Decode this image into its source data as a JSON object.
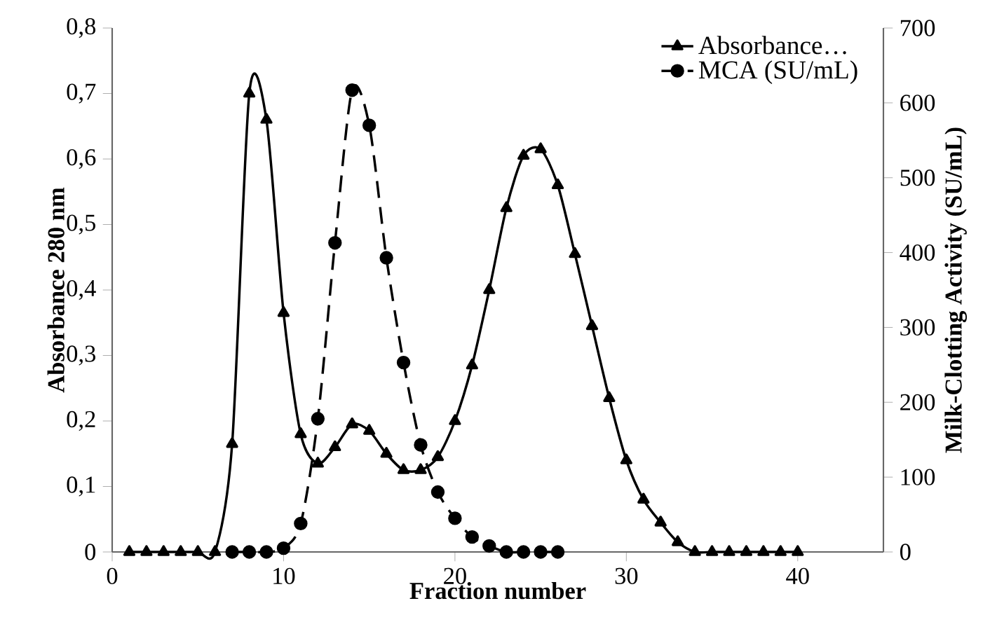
{
  "chart_data": {
    "type": "line",
    "xlabel": "Fraction number",
    "ylabel": "Absorbance  280 nm",
    "y2label": "Milk-Clotting Activity (SU/mL)",
    "legend": "top right",
    "xlim": [
      0,
      45
    ],
    "xticks": [
      0,
      10,
      20,
      30,
      40
    ],
    "ylim": [
      0,
      0.8
    ],
    "yticks": [
      0,
      {
        "value": 0.1,
        "label": "0,1"
      },
      {
        "value": 0.2,
        "label": "0,2"
      },
      {
        "value": 0.3,
        "label": "0,3"
      },
      {
        "value": 0.4,
        "label": "0,4"
      },
      {
        "value": 0.5,
        "label": "0,5"
      },
      {
        "value": 0.6,
        "label": "0,6"
      },
      {
        "value": 0.7,
        "label": "0,7"
      },
      {
        "value": 0.8,
        "label": "0,8"
      }
    ],
    "y2lim": [
      0,
      700
    ],
    "y2ticks": [
      0,
      100,
      200,
      300,
      400,
      500,
      600,
      700
    ],
    "series": [
      {
        "name": "Absorbance…",
        "color": "#000000",
        "marker": "triangle",
        "line_style": "solid",
        "x": [
          1,
          2,
          3,
          4,
          5,
          6,
          7,
          8,
          9,
          10,
          11,
          12,
          13,
          14,
          15,
          16,
          17,
          18,
          19,
          20,
          21,
          22,
          23,
          24,
          25,
          26,
          27,
          28,
          29,
          30,
          31,
          32,
          33,
          34,
          35,
          36,
          37,
          38,
          39,
          40
        ],
        "values": [
          0,
          0,
          0,
          0,
          0,
          0,
          0.165,
          0.7,
          0.66,
          0.365,
          0.18,
          0.135,
          0.16,
          0.195,
          0.185,
          0.15,
          0.125,
          0.125,
          0.145,
          0.2,
          0.285,
          0.4,
          0.525,
          0.605,
          0.615,
          0.56,
          0.455,
          0.345,
          0.235,
          0.14,
          0.08,
          0.045,
          0.015,
          0,
          0,
          0,
          0,
          0,
          0,
          0
        ]
      },
      {
        "name": "MCA (SU/mL)",
        "color": "#000000",
        "marker": "circle",
        "line_style": "dashed",
        "axis": "y2",
        "x": [
          7,
          8,
          9,
          10,
          11,
          12,
          13,
          14,
          15,
          16,
          17,
          18,
          19,
          20,
          21,
          22,
          23,
          24,
          25,
          26
        ],
        "values": [
          0,
          0,
          0,
          5,
          38,
          178,
          413,
          617,
          570,
          393,
          253,
          143,
          80,
          45,
          20,
          8,
          0,
          0,
          0,
          0
        ]
      }
    ]
  }
}
